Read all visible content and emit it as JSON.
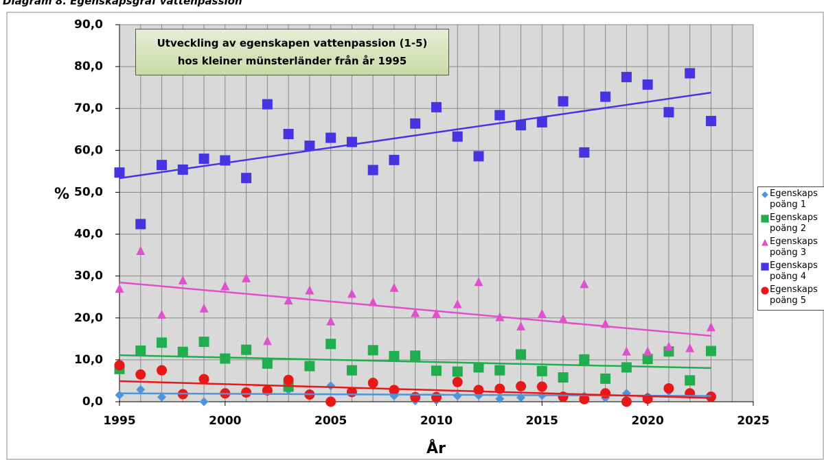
{
  "chart_data": {
    "type": "scatter",
    "title": "Diagram 8. Egenskapsgraf vattenpassion",
    "annotation": "Utveckling av egenskapen vattenpassion (1-5) hos kleiner münsterländer från år 1995",
    "x_label": "År",
    "y_label": "%",
    "x": [
      1995,
      1996,
      1997,
      1998,
      1999,
      2000,
      2001,
      2002,
      2003,
      2004,
      2005,
      2006,
      2007,
      2008,
      2009,
      2010,
      2011,
      2012,
      2013,
      2014,
      2015,
      2016,
      2017,
      2018,
      2019,
      2020,
      2021,
      2022,
      2023
    ],
    "series": [
      {
        "name": "Egenskaps poäng 1",
        "color": "#4f93d8",
        "marker": "diamond",
        "values": [
          1.6,
          2.9,
          1.1,
          1.8,
          0.0,
          2.0,
          2.2,
          2.7,
          2.8,
          1.7,
          3.8,
          2.3,
          3.8,
          1.4,
          0.2,
          0.3,
          1.4,
          1.5,
          0.7,
          1.0,
          1.5,
          1.2,
          1.4,
          0.9,
          2.0,
          1.2,
          2.5,
          1.7,
          1.5
        ]
      },
      {
        "name": "Egenskaps poäng 2",
        "color": "#20ad4e",
        "marker": "square",
        "values": [
          7.8,
          12.2,
          14.1,
          11.9,
          14.3,
          10.3,
          12.4,
          9.1,
          3.6,
          8.5,
          13.8,
          7.5,
          12.3,
          10.9,
          11.0,
          7.4,
          7.2,
          8.2,
          7.5,
          11.3,
          7.3,
          5.8,
          10.1,
          5.5,
          8.2,
          10.2,
          12.0,
          5.1,
          12.1
        ]
      },
      {
        "name": "Egenskaps poäng 3",
        "color": "#e050cc",
        "marker": "triangle",
        "values": [
          27.0,
          36.0,
          20.8,
          29.0,
          22.3,
          27.6,
          29.5,
          14.5,
          24.2,
          26.6,
          19.2,
          25.8,
          23.8,
          27.2,
          21.2,
          21.0,
          23.3,
          28.6,
          20.2,
          18.0,
          21.0,
          19.8,
          28.1,
          18.6,
          12.0,
          12.0,
          13.2,
          12.8,
          17.8
        ]
      },
      {
        "name": "Egenskaps poäng 4",
        "color": "#4634e0",
        "marker": "square",
        "values": [
          54.7,
          42.4,
          56.5,
          55.4,
          58.0,
          57.6,
          53.4,
          71.0,
          63.9,
          61.1,
          63.0,
          62.0,
          55.3,
          57.7,
          66.4,
          70.3,
          63.3,
          58.6,
          68.4,
          66.0,
          66.7,
          71.7,
          59.5,
          72.8,
          77.5,
          75.7,
          69.1,
          78.4,
          67.0
        ]
      },
      {
        "name": "Egenskaps poäng 5",
        "color": "#e81818",
        "marker": "circle",
        "values": [
          8.7,
          6.5,
          7.5,
          1.8,
          5.4,
          2.0,
          2.2,
          2.7,
          5.2,
          1.7,
          0.0,
          2.3,
          4.5,
          2.8,
          1.1,
          1.1,
          4.7,
          2.8,
          3.1,
          3.7,
          3.6,
          1.2,
          0.6,
          2.0,
          0.0,
          0.7,
          3.2,
          2.0,
          1.2
        ]
      }
    ],
    "trendline": true,
    "xlim": [
      1995,
      2025
    ],
    "xticks": [
      1995,
      2000,
      2005,
      2010,
      2015,
      2020,
      2025
    ],
    "ylim": [
      0,
      90
    ],
    "yticks": [
      {
        "value": 0,
        "label": "0,0"
      },
      {
        "value": 10,
        "label": "10,0"
      },
      {
        "value": 20,
        "label": "20,0"
      },
      {
        "value": 30,
        "label": "30,0"
      },
      {
        "value": 40,
        "label": "40,0"
      },
      {
        "value": 50,
        "label": "50,0"
      },
      {
        "value": 60,
        "label": "60,0"
      },
      {
        "value": 70,
        "label": "70,0"
      },
      {
        "value": 80,
        "label": "80,0"
      },
      {
        "value": 90,
        "label": "90,0"
      }
    ],
    "grid": true,
    "legend": "right"
  }
}
